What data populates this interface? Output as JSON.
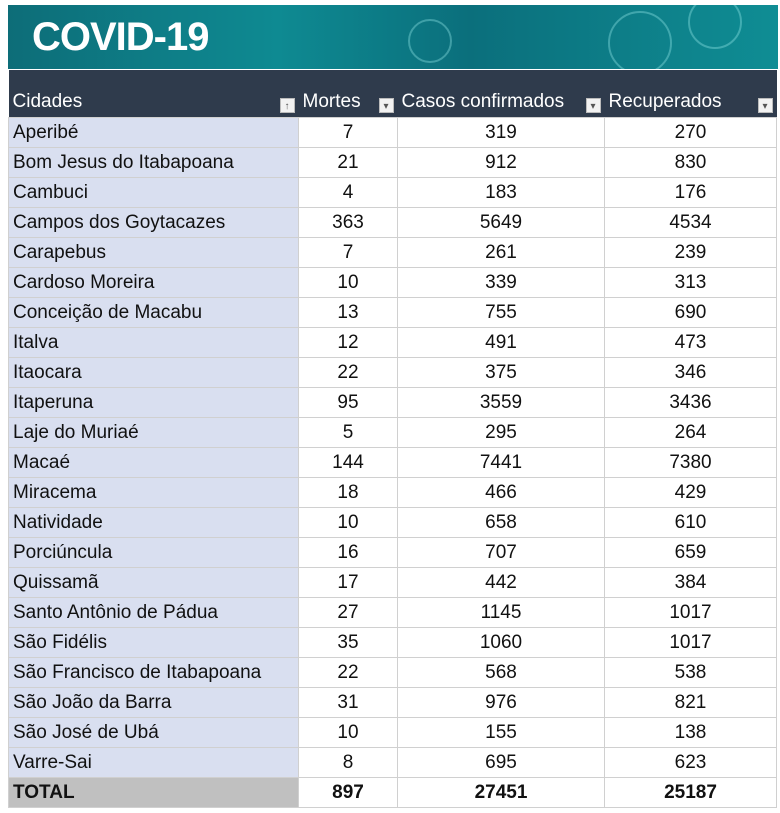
{
  "banner": {
    "title": "COVID-19"
  },
  "table": {
    "headers": [
      "Cidades",
      "Mortes",
      "Casos confirmados",
      "Recuperados"
    ],
    "sort_icon": "sort-ascending-icon",
    "filter_icon": "filter-dropdown-icon",
    "rows": [
      [
        "Aperibé",
        "7",
        "319",
        "270"
      ],
      [
        "Bom Jesus do Itabapoana",
        "21",
        "912",
        "830"
      ],
      [
        "Cambuci",
        "4",
        "183",
        "176"
      ],
      [
        "Campos dos Goytacazes",
        "363",
        "5649",
        "4534"
      ],
      [
        "Carapebus",
        "7",
        "261",
        "239"
      ],
      [
        "Cardoso Moreira",
        "10",
        "339",
        "313"
      ],
      [
        "Conceição de Macabu",
        "13",
        "755",
        "690"
      ],
      [
        "Italva",
        "12",
        "491",
        "473"
      ],
      [
        "Itaocara",
        "22",
        "375",
        "346"
      ],
      [
        "Itaperuna",
        "95",
        "3559",
        "3436"
      ],
      [
        "Laje do Muriaé",
        "5",
        "295",
        "264"
      ],
      [
        "Macaé",
        "144",
        "7441",
        "7380"
      ],
      [
        "Miracema",
        "18",
        "466",
        "429"
      ],
      [
        "Natividade",
        "10",
        "658",
        "610"
      ],
      [
        "Porciúncula",
        "16",
        "707",
        "659"
      ],
      [
        "Quissamã",
        "17",
        "442",
        "384"
      ],
      [
        "Santo Antônio de Pádua",
        "27",
        "1145",
        "1017"
      ],
      [
        "São Fidélis",
        "35",
        "1060",
        "1017"
      ],
      [
        "São Francisco de Itabapoana",
        "22",
        "568",
        "538"
      ],
      [
        "São João da Barra",
        "31",
        "976",
        "821"
      ],
      [
        "São José de Ubá",
        "10",
        "155",
        "138"
      ],
      [
        "Varre-Sai",
        "8",
        "695",
        "623"
      ]
    ],
    "total": [
      "TOTAL",
      "897",
      "27451",
      "25187"
    ]
  }
}
